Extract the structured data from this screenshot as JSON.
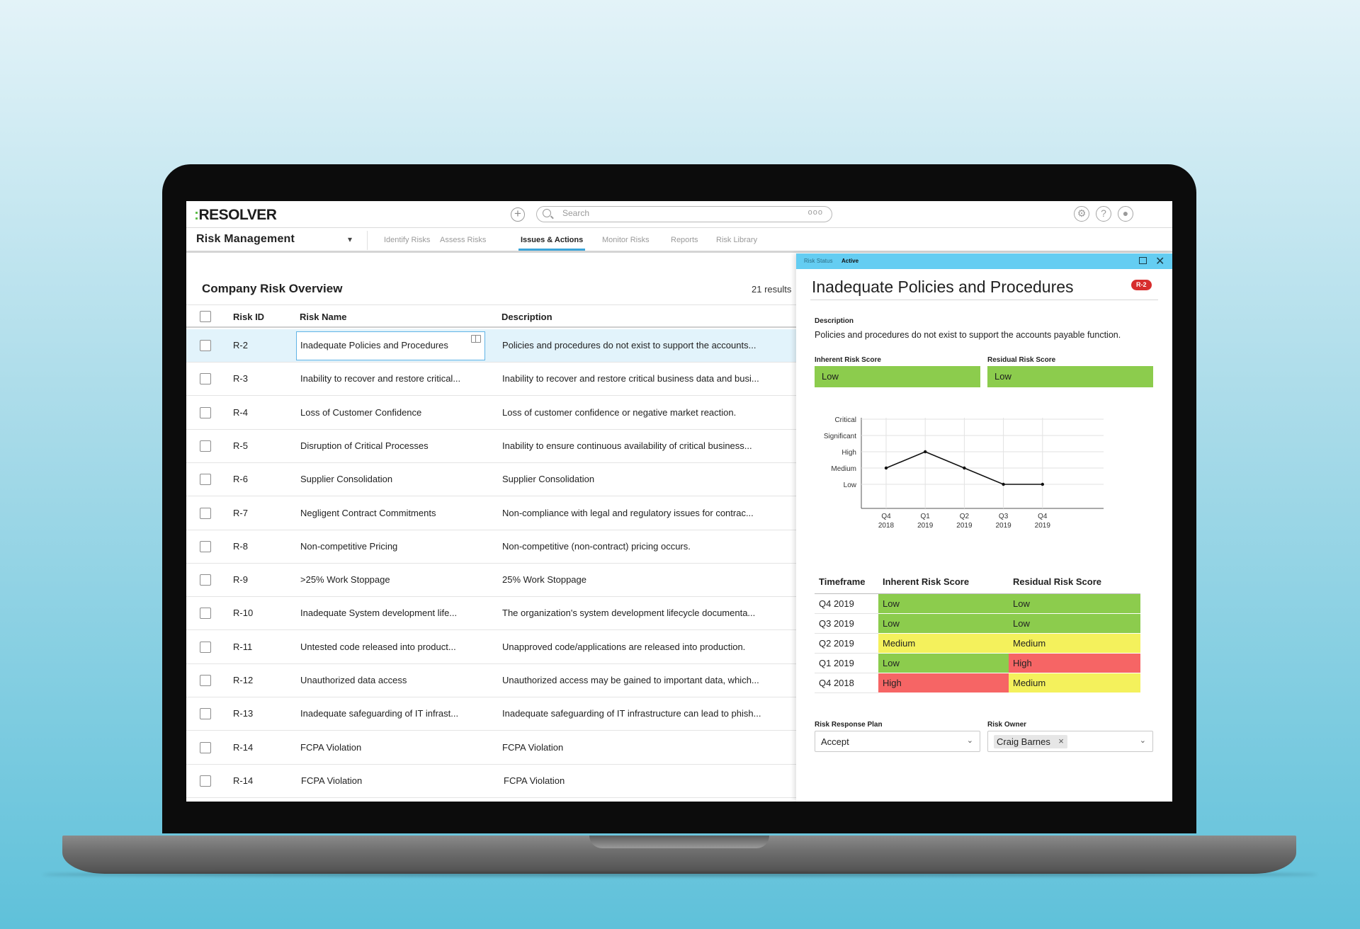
{
  "app": {
    "logo": "RESOLVER",
    "logo_prefix": ":",
    "search_placeholder": "Search",
    "search_more": "ooo",
    "module": "Risk Management",
    "tabs": [
      "Identify Risks",
      "Assess Risks",
      "Issues & Actions",
      "Monitor Risks",
      "Reports",
      "Risk Library"
    ],
    "active_tab": "Issues & Actions"
  },
  "list": {
    "title": "Company Risk Overview",
    "results": "21 results",
    "columns": [
      "Risk ID",
      "Risk Name",
      "Description"
    ],
    "rows": [
      {
        "id": "R-2",
        "name": "Inadequate Policies and Procedures",
        "desc": "Policies and procedures do not exist to support the accounts...",
        "selected": true
      },
      {
        "id": "R-3",
        "name": "Inability to recover and restore critical...",
        "desc": "Inability to recover and restore critical business data and busi..."
      },
      {
        "id": "R-4",
        "name": "Loss of Customer Confidence",
        "desc": "Loss of customer confidence or negative market reaction."
      },
      {
        "id": "R-5",
        "name": "Disruption of Critical Processes",
        "desc": "Inability to ensure continuous availability of critical business..."
      },
      {
        "id": "R-6",
        "name": "Supplier Consolidation",
        "desc": "Supplier Consolidation"
      },
      {
        "id": "R-7",
        "name": "Negligent Contract Commitments",
        "desc": "Non-compliance with legal and regulatory issues for contrac..."
      },
      {
        "id": "R-8",
        "name": "Non-competitive Pricing",
        "desc": "Non-competitive (non-contract) pricing occurs."
      },
      {
        "id": "R-9",
        "name": ">25% Work Stoppage",
        "desc": "25% Work Stoppage"
      },
      {
        "id": "R-10",
        "name": "Inadequate System development life...",
        "desc": "The organization's system development lifecycle documenta..."
      },
      {
        "id": "R-11",
        "name": "Untested code released into product...",
        "desc": "Unapproved code/applications are released into production."
      },
      {
        "id": "R-12",
        "name": "Unauthorized data access",
        "desc": "Unauthorized access may be gained to important data, which..."
      },
      {
        "id": "R-13",
        "name": "Inadequate safeguarding of IT infrast...",
        "desc": "Inadequate safeguarding of IT infrastructure can lead to phish..."
      },
      {
        "id": "R-14",
        "name": "FCPA Violation",
        "desc": "FCPA Violation"
      },
      {
        "id": "R-14",
        "name": "FCPA Violation",
        "desc": "FCPA Violation"
      }
    ]
  },
  "detail": {
    "status_label": "Risk Status",
    "status_value": "Active",
    "title": "Inadequate Policies and Procedures",
    "badge": "R-2",
    "description_label": "Description",
    "description": "Policies and procedures do not exist to support the accounts payable function.",
    "inherent_label": "Inherent Risk Score",
    "inherent_value": "Low",
    "residual_label": "Residual Risk Score",
    "residual_value": "Low",
    "response_label": "Risk Response Plan",
    "response_value": "Accept",
    "owner_label": "Risk Owner",
    "owner_value": "Craig Barnes",
    "table_headers": [
      "Timeframe",
      "Inherent Risk Score",
      "Residual Risk Score"
    ],
    "table_rows": [
      [
        "Q4 2019",
        "Low",
        "Low"
      ],
      [
        "Q3 2019",
        "Low",
        "Low"
      ],
      [
        "Q2 2019",
        "Medium",
        "Medium"
      ],
      [
        "Q1 2019",
        "Low",
        "High"
      ],
      [
        "Q4 2018",
        "High",
        "Medium"
      ]
    ],
    "colors": {
      "Low": "#8ccc4d",
      "Medium": "#f4f15c",
      "High": "#f66565",
      "accent": "#64cdf2",
      "badge": "#d72d2d"
    }
  },
  "chart_data": {
    "type": "line",
    "x": [
      [
        "Q4",
        "2018"
      ],
      [
        "Q1",
        "2019"
      ],
      [
        "Q2",
        "2019"
      ],
      [
        "Q3",
        "2019"
      ],
      [
        "Q4",
        "2019"
      ]
    ],
    "y_levels": [
      "Low",
      "Medium",
      "High",
      "Significant",
      "Critical"
    ],
    "values": [
      "Medium",
      "High",
      "Medium",
      "Low",
      "Low"
    ],
    "grid": true
  }
}
